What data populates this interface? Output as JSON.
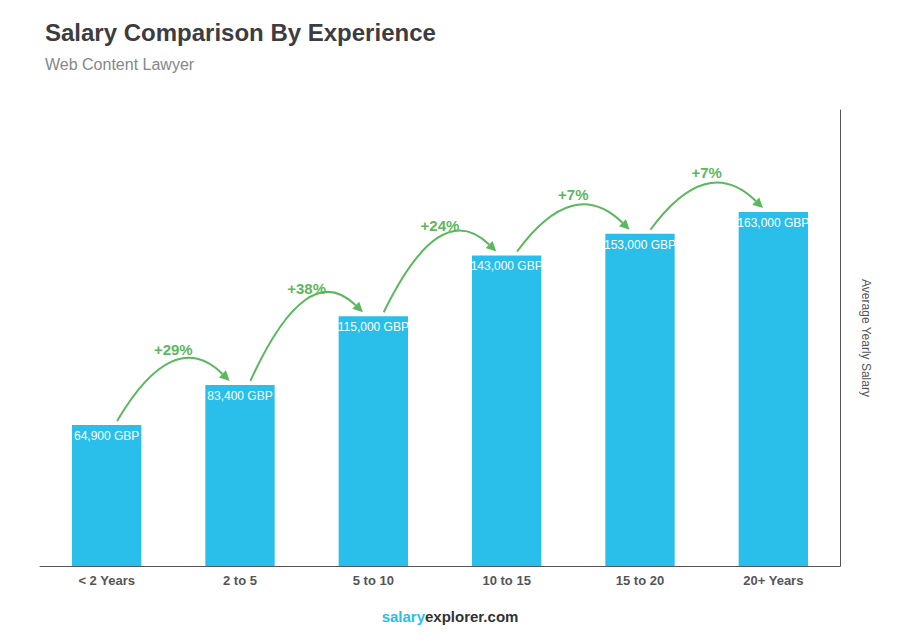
{
  "chart_data": {
    "type": "bar",
    "title": "Salary Comparison By Experience",
    "subtitle": "Web Content Lawyer",
    "ylabel": "Average Yearly Salary",
    "categories": [
      "< 2 Years",
      "2 to 5",
      "5 to 10",
      "10 to 15",
      "15 to 20",
      "20+ Years"
    ],
    "values": [
      64900,
      83400,
      115000,
      143000,
      153000,
      163000
    ],
    "value_labels": [
      "64,900 GBP",
      "83,400 GBP",
      "115,000 GBP",
      "143,000 GBP",
      "153,000 GBP",
      "163,000 GBP"
    ],
    "data_labels": true,
    "annotations": [
      "+29%",
      "+38%",
      "+24%",
      "+7%",
      "+7%"
    ],
    "footer": [
      "salary",
      "explorer.com"
    ],
    "color": "#29BFEA",
    "ylim": [
      0,
      210000
    ],
    "tick_labels": "x",
    "grid": false
  }
}
